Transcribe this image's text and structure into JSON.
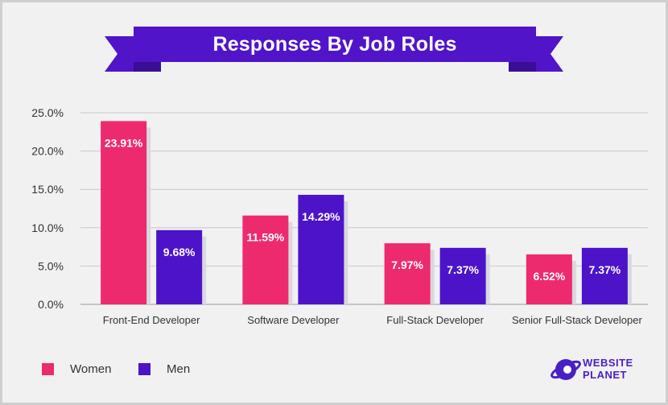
{
  "title": "Responses By Job Roles",
  "colors": {
    "women": "#ee2a6f",
    "men": "#4c13c9",
    "ribbon": "#5114c9",
    "ribbon_fold": "#3a0d96",
    "shadow": "#d9d8e0",
    "axis_text": "#333333",
    "grid": "#c8c8c8"
  },
  "chart_data": {
    "type": "bar",
    "categories": [
      "Front-End Developer",
      "Software Developer",
      "Full-Stack Developer",
      "Senior Full-Stack Developer"
    ],
    "series": [
      {
        "name": "Women",
        "values": [
          23.91,
          11.59,
          7.97,
          6.52
        ],
        "labels": [
          "23.91%",
          "11.59%",
          "7.97%",
          "6.52%"
        ]
      },
      {
        "name": "Men",
        "values": [
          9.68,
          14.29,
          7.37,
          7.37
        ],
        "labels": [
          "9.68%",
          "14.29%",
          "7.37%",
          "7.37%"
        ]
      }
    ],
    "ylim": [
      0,
      25
    ],
    "yticks": [
      "0.0%",
      "5.0%",
      "10.0%",
      "15.0%",
      "20.0%",
      "25.0%"
    ],
    "grid": true,
    "legend_position": "bottom-left"
  },
  "legend": {
    "women": "Women",
    "men": "Men"
  },
  "logo": {
    "line1": "WEBSITE",
    "line2": "PLANET"
  }
}
